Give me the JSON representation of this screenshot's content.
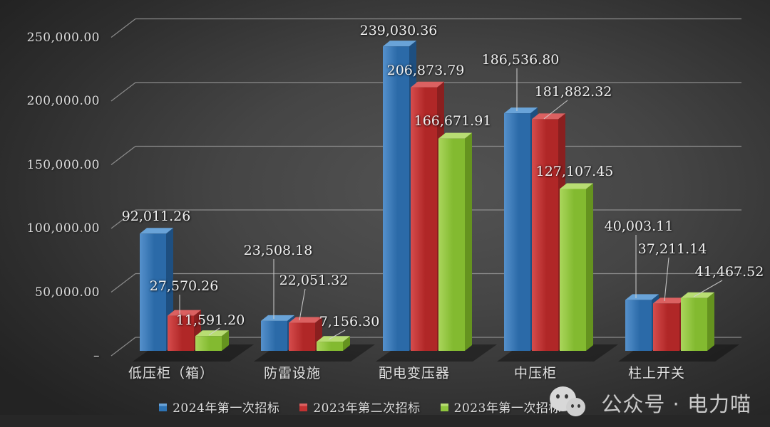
{
  "chart_data": {
    "type": "bar",
    "style": "3d-clustered-column",
    "title": "",
    "categories": [
      "低压柜（箱）",
      "防雷设施",
      "配电变压器",
      "中压柜",
      "柱上开关"
    ],
    "series": [
      {
        "name": "2024年第一次招标",
        "color": "#2e74b5",
        "values": [
          92011.26,
          23508.18,
          239030.36,
          186536.8,
          40003.11
        ],
        "labels": [
          "92,011.26",
          "23,508.18",
          "239,030.36",
          "186,536.80",
          "40,003.11"
        ]
      },
      {
        "name": "2023年第二次招标",
        "color": "#c23232",
        "values": [
          27570.26,
          22051.32,
          206873.79,
          181882.32,
          37211.14
        ],
        "labels": [
          "27,570.26",
          "22,051.32",
          "206,873.79",
          "181,882.32",
          "37,211.14"
        ]
      },
      {
        "name": "2023年第一次招标",
        "color": "#8fc63e",
        "values": [
          11591.2,
          7156.3,
          166671.91,
          127107.45,
          41467.52
        ],
        "labels": [
          "11,591.20",
          "7,156.30",
          "166,671.91",
          "127,107.45",
          "41,467.52"
        ]
      }
    ],
    "y_axis": {
      "min": 0,
      "max": 250000,
      "step": 50000,
      "tick_labels": [
        "250,000.00",
        "200,000.00",
        "150,000.00",
        "100,000.00",
        "50,000.00",
        "–"
      ]
    },
    "legend_position": "bottom",
    "grid": true
  },
  "watermark": {
    "text": "公众号 · 电力喵",
    "icon": "wechat"
  },
  "colors": {
    "gridline": "#9a9a9a",
    "leader_line": "#d0d0d0",
    "text": "#e2e2e2",
    "background_center": "#535353",
    "background_edge": "#232323"
  }
}
